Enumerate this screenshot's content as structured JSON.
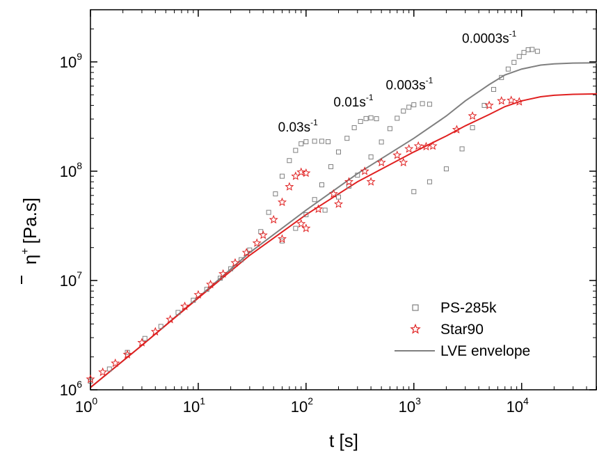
{
  "chart_data": {
    "type": "scatter",
    "x_scale": "log",
    "y_scale": "log",
    "xlim": [
      1,
      50000
    ],
    "ylim": [
      1000000,
      3000000000
    ],
    "xlabel": "t [s]",
    "ylabel": {
      "symbol": "η",
      "superscript": "+",
      "unit": "[Pa.s]"
    },
    "x_ticks": [
      {
        "base": "10",
        "exp": "0",
        "value": 1
      },
      {
        "base": "10",
        "exp": "1",
        "value": 10
      },
      {
        "base": "10",
        "exp": "2",
        "value": 100
      },
      {
        "base": "10",
        "exp": "3",
        "value": 1000
      },
      {
        "base": "10",
        "exp": "4",
        "value": 10000
      }
    ],
    "y_ticks": [
      {
        "base": "10",
        "exp": "6",
        "value": 1000000
      },
      {
        "base": "10",
        "exp": "7",
        "value": 10000000
      },
      {
        "base": "10",
        "exp": "8",
        "value": 100000000
      },
      {
        "base": "10",
        "exp": "9",
        "value": 1000000000
      }
    ],
    "grid": false,
    "legend_position": "bottom-right",
    "legend": [
      {
        "label": "PS-285k",
        "marker": "square",
        "color": "#7f7f7f"
      },
      {
        "label": "Star90",
        "marker": "star",
        "color": "#e02020"
      },
      {
        "label": "LVE envelope",
        "marker": "line",
        "color": "#7f7f7f"
      }
    ],
    "annotations": [
      {
        "text": "0.03s",
        "exp": "-1",
        "x": 55,
        "y": 230000000
      },
      {
        "text": "0.01s",
        "exp": "-1",
        "x": 180,
        "y": 390000000
      },
      {
        "text": "0.003s",
        "exp": "-1",
        "x": 550,
        "y": 560000000
      },
      {
        "text": "0.0003s",
        "exp": "-1",
        "x": 2800,
        "y": 1500000000
      }
    ],
    "series": [
      {
        "name": "PS-285k",
        "kind": "scatter",
        "marker": "square",
        "color": "#7f7f7f",
        "points": [
          [
            1,
            1200000
          ],
          [
            1.5,
            1550000
          ],
          [
            2.2,
            2200000
          ],
          [
            3.2,
            2950000
          ],
          [
            4.5,
            3800000
          ],
          [
            6.5,
            5100000
          ],
          [
            9,
            6600000
          ],
          [
            12,
            8300000
          ],
          [
            16,
            10500000
          ],
          [
            20,
            12800000
          ],
          [
            25,
            15500000
          ],
          [
            30,
            19000000
          ],
          [
            38,
            28000000
          ],
          [
            45,
            42000000
          ],
          [
            52,
            62000000
          ],
          [
            60,
            90000000
          ],
          [
            70,
            125000000
          ],
          [
            80,
            155000000
          ],
          [
            90,
            178000000
          ],
          [
            100,
            186000000
          ],
          [
            120,
            188000000
          ],
          [
            140,
            188000000
          ],
          [
            160,
            186000000
          ],
          [
            60,
            23000000
          ],
          [
            80,
            30000000
          ],
          [
            100,
            40000000
          ],
          [
            120,
            55000000
          ],
          [
            140,
            75000000
          ],
          [
            170,
            110000000
          ],
          [
            200,
            150000000
          ],
          [
            240,
            200000000
          ],
          [
            280,
            250000000
          ],
          [
            320,
            285000000
          ],
          [
            360,
            303000000
          ],
          [
            400,
            308000000
          ],
          [
            450,
            302000000
          ],
          [
            150,
            44000000
          ],
          [
            200,
            58000000
          ],
          [
            250,
            73000000
          ],
          [
            300,
            92000000
          ],
          [
            400,
            135000000
          ],
          [
            500,
            185000000
          ],
          [
            600,
            245000000
          ],
          [
            700,
            305000000
          ],
          [
            800,
            355000000
          ],
          [
            900,
            385000000
          ],
          [
            1000,
            405000000
          ],
          [
            1200,
            415000000
          ],
          [
            1400,
            410000000
          ],
          [
            1000,
            65000000
          ],
          [
            1400,
            80000000
          ],
          [
            2000,
            105000000
          ],
          [
            2800,
            160000000
          ],
          [
            3500,
            250000000
          ],
          [
            4500,
            400000000
          ],
          [
            5500,
            560000000
          ],
          [
            6500,
            720000000
          ],
          [
            7500,
            860000000
          ],
          [
            8500,
            990000000
          ],
          [
            9500,
            1120000000
          ],
          [
            10500,
            1220000000
          ],
          [
            11500,
            1290000000
          ],
          [
            12500,
            1300000000
          ],
          [
            14000,
            1250000000
          ]
        ]
      },
      {
        "name": "Star90",
        "kind": "scatter",
        "marker": "star",
        "color": "#e02020",
        "points": [
          [
            1,
            1250000
          ],
          [
            1.3,
            1450000
          ],
          [
            1.7,
            1750000
          ],
          [
            2.2,
            2100000
          ],
          [
            3,
            2700000
          ],
          [
            4,
            3400000
          ],
          [
            5.5,
            4400000
          ],
          [
            7.5,
            5800000
          ],
          [
            10,
            7400000
          ],
          [
            13,
            9200000
          ],
          [
            17,
            11500000
          ],
          [
            22,
            14500000
          ],
          [
            28,
            18000000
          ],
          [
            35,
            22000000
          ],
          [
            40,
            26000000
          ],
          [
            50,
            36000000
          ],
          [
            60,
            52000000
          ],
          [
            70,
            72000000
          ],
          [
            80,
            90000000
          ],
          [
            90,
            98000000
          ],
          [
            100,
            96000000
          ],
          [
            60,
            24000000
          ],
          [
            90,
            33000000
          ],
          [
            130,
            45000000
          ],
          [
            180,
            62000000
          ],
          [
            250,
            80000000
          ],
          [
            350,
            100000000
          ],
          [
            500,
            120000000
          ],
          [
            700,
            140000000
          ],
          [
            900,
            160000000
          ],
          [
            1100,
            170000000
          ],
          [
            1300,
            168000000
          ],
          [
            100,
            30000000
          ],
          [
            200,
            50000000
          ],
          [
            400,
            80000000
          ],
          [
            800,
            120000000
          ],
          [
            1500,
            170000000
          ],
          [
            2500,
            240000000
          ],
          [
            3500,
            320000000
          ],
          [
            5000,
            400000000
          ],
          [
            6500,
            440000000
          ],
          [
            8000,
            445000000
          ],
          [
            9500,
            432000000
          ]
        ]
      },
      {
        "name": "PS-285k LVE envelope",
        "kind": "line",
        "color": "#7f7f7f",
        "points": [
          [
            1,
            1050000
          ],
          [
            3,
            2550000
          ],
          [
            10,
            7000000
          ],
          [
            30,
            18000000
          ],
          [
            100,
            44000000
          ],
          [
            300,
            95000000
          ],
          [
            1000,
            200000000
          ],
          [
            2000,
            320000000
          ],
          [
            3000,
            440000000
          ],
          [
            5000,
            620000000
          ],
          [
            7000,
            760000000
          ],
          [
            10000,
            860000000
          ],
          [
            15000,
            935000000
          ],
          [
            20000,
            960000000
          ],
          [
            30000,
            975000000
          ],
          [
            50000,
            980000000
          ]
        ]
      },
      {
        "name": "Star90 LVE envelope",
        "kind": "line",
        "color": "#e02020",
        "points": [
          [
            1,
            1050000
          ],
          [
            3,
            2550000
          ],
          [
            10,
            6900000
          ],
          [
            30,
            17000000
          ],
          [
            100,
            40000000
          ],
          [
            300,
            80000000
          ],
          [
            1000,
            150000000
          ],
          [
            2000,
            210000000
          ],
          [
            3000,
            260000000
          ],
          [
            5000,
            330000000
          ],
          [
            7000,
            390000000
          ],
          [
            10000,
            440000000
          ],
          [
            15000,
            480000000
          ],
          [
            20000,
            495000000
          ],
          [
            30000,
            505000000
          ],
          [
            50000,
            510000000
          ]
        ]
      }
    ]
  }
}
